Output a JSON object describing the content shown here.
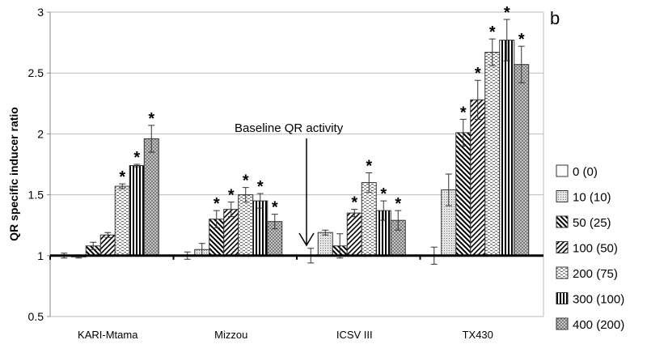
{
  "chart_data": {
    "type": "bar",
    "panel_label": "b",
    "ylabel": "QR specific inducer ratio",
    "xlabel": "",
    "ylim": [
      0.5,
      3
    ],
    "yticks": [
      "0.5",
      "1",
      "1.5",
      "2",
      "2.5",
      "3"
    ],
    "grid": true,
    "baseline": 1,
    "legend_position": "right",
    "annotation": "Baseline QR activity",
    "categories": [
      "KARI-Mtama",
      "Mizzou",
      "ICSV III",
      "TX430"
    ],
    "series": [
      {
        "name": "0 (0)",
        "pattern": "white",
        "values": [
          1.0,
          1.0,
          1.0,
          1.0
        ],
        "errors": [
          0.02,
          0.03,
          0.06,
          0.07
        ],
        "significant": [
          false,
          false,
          false,
          false
        ]
      },
      {
        "name": "10 (10)",
        "pattern": "fine-dots",
        "values": [
          0.99,
          1.05,
          1.19,
          1.54
        ],
        "errors": [
          0.01,
          0.05,
          0.02,
          0.13
        ],
        "significant": [
          false,
          false,
          false,
          false
        ]
      },
      {
        "name": "50 (25)",
        "pattern": "back-diagonal",
        "values": [
          1.08,
          1.3,
          1.08,
          2.01
        ],
        "errors": [
          0.03,
          0.07,
          0.1,
          0.11
        ],
        "significant": [
          false,
          true,
          false,
          true
        ]
      },
      {
        "name": "100 (50)",
        "pattern": "forward-diagonal",
        "values": [
          1.17,
          1.38,
          1.35,
          2.28
        ],
        "errors": [
          0.02,
          0.06,
          0.03,
          0.16
        ],
        "significant": [
          false,
          true,
          true,
          true
        ]
      },
      {
        "name": "200 (75)",
        "pattern": "dashes",
        "values": [
          1.57,
          1.5,
          1.6,
          2.67
        ],
        "errors": [
          0.02,
          0.06,
          0.08,
          0.11
        ],
        "significant": [
          true,
          true,
          true,
          true
        ]
      },
      {
        "name": "300 (100)",
        "pattern": "vertical",
        "values": [
          1.74,
          1.45,
          1.37,
          2.77
        ],
        "errors": [
          0.01,
          0.06,
          0.08,
          0.17
        ],
        "significant": [
          true,
          true,
          true,
          true
        ]
      },
      {
        "name": "400 (200)",
        "pattern": "crosshatch",
        "values": [
          1.96,
          1.28,
          1.29,
          2.57
        ],
        "errors": [
          0.11,
          0.06,
          0.08,
          0.15
        ],
        "significant": [
          true,
          true,
          true,
          true
        ]
      }
    ],
    "significance_marker": "*"
  }
}
